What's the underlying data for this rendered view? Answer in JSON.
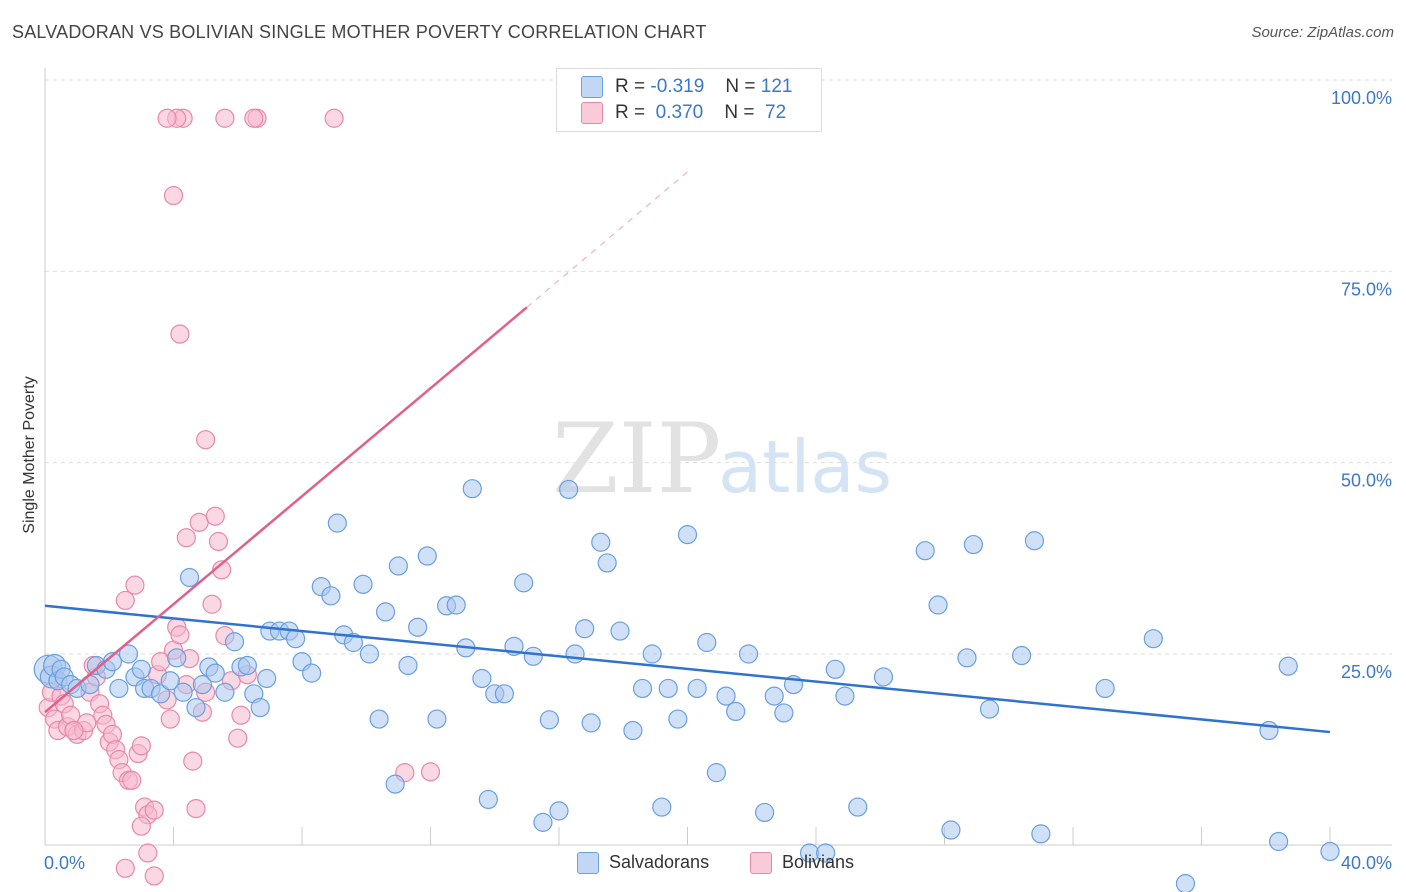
{
  "title": "SALVADORAN VS BOLIVIAN SINGLE MOTHER POVERTY CORRELATION CHART",
  "source": "Source: ZipAtlas.com",
  "watermark": {
    "zip": "ZIP",
    "atlas": "atlas"
  },
  "legend": {
    "rows": [
      {
        "r_label": "R =",
        "r_value": "-0.319",
        "n_label": "N =",
        "n_value": "121"
      },
      {
        "r_label": "R =",
        "r_value": " 0.370",
        "n_label": "N =",
        "n_value": "72"
      }
    ]
  },
  "bottom_legend": {
    "salvadorans": "Salvadorans",
    "bolivians": "Bolivians"
  },
  "colors": {
    "blue_fill": "#a9c6ee",
    "blue_stroke": "#6a9fe0",
    "blue_line": "#2f73cf",
    "pink_fill": "#f6b8cc",
    "pink_stroke": "#e888a8",
    "pink_line": "#e0608a",
    "tick": "#3b78c6",
    "grid": "#dddddd"
  },
  "chart_data": {
    "type": "scatter",
    "title": "SALVADORAN VS BOLIVIAN SINGLE MOTHER POVERTY CORRELATION CHART",
    "xlabel": "",
    "ylabel": "Single Mother Poverty",
    "xlim": [
      0,
      40
    ],
    "ylim": [
      0,
      100
    ],
    "x_tick_labels": [
      "0.0%",
      "40.0%"
    ],
    "y_ticks": [
      25,
      50,
      75,
      100
    ],
    "y_tick_labels": [
      "25.0%",
      "50.0%",
      "75.0%",
      "100.0%"
    ],
    "grid": true,
    "legend_position": "top-center",
    "series": [
      {
        "name": "Salvadorans",
        "r": -0.319,
        "n": 121,
        "trend": {
          "x": [
            0,
            40
          ],
          "y": [
            31.3,
            14.8
          ]
        },
        "points": [
          [
            0.1,
            23.0
          ],
          [
            0.2,
            22.0
          ],
          [
            0.3,
            23.5
          ],
          [
            0.4,
            21.5
          ],
          [
            0.5,
            23.0
          ],
          [
            0.6,
            22.0
          ],
          [
            0.8,
            21.0
          ],
          [
            1.0,
            20.5
          ],
          [
            1.4,
            21.0
          ],
          [
            1.6,
            23.5
          ],
          [
            1.9,
            23.0
          ],
          [
            2.1,
            24.0
          ],
          [
            2.3,
            20.5
          ],
          [
            2.6,
            25.0
          ],
          [
            2.8,
            22.0
          ],
          [
            3.0,
            23.0
          ],
          [
            3.1,
            20.5
          ],
          [
            3.3,
            20.5
          ],
          [
            3.6,
            19.8
          ],
          [
            3.9,
            21.5
          ],
          [
            4.1,
            24.5
          ],
          [
            4.3,
            20.0
          ],
          [
            4.5,
            35.0
          ],
          [
            4.7,
            18.0
          ],
          [
            4.9,
            21.0
          ],
          [
            5.1,
            23.3
          ],
          [
            5.3,
            22.5
          ],
          [
            5.6,
            20.0
          ],
          [
            5.9,
            26.6
          ],
          [
            6.1,
            23.3
          ],
          [
            6.3,
            23.5
          ],
          [
            6.5,
            19.8
          ],
          [
            6.7,
            18.0
          ],
          [
            6.9,
            21.8
          ],
          [
            7.0,
            28.0
          ],
          [
            7.3,
            28.0
          ],
          [
            7.6,
            28.0
          ],
          [
            7.8,
            27.0
          ],
          [
            8.0,
            24.0
          ],
          [
            8.3,
            22.5
          ],
          [
            8.6,
            33.8
          ],
          [
            8.9,
            32.6
          ],
          [
            9.1,
            42.1
          ],
          [
            9.3,
            27.5
          ],
          [
            9.6,
            26.5
          ],
          [
            9.9,
            34.1
          ],
          [
            10.1,
            25.0
          ],
          [
            10.4,
            16.5
          ],
          [
            10.6,
            30.5
          ],
          [
            10.9,
            8.0
          ],
          [
            11.0,
            36.5
          ],
          [
            11.3,
            23.5
          ],
          [
            11.6,
            28.5
          ],
          [
            11.9,
            37.8
          ],
          [
            12.2,
            16.5
          ],
          [
            12.5,
            31.3
          ],
          [
            12.8,
            31.4
          ],
          [
            13.1,
            25.8
          ],
          [
            13.3,
            46.6
          ],
          [
            13.6,
            21.8
          ],
          [
            13.8,
            6.0
          ],
          [
            14.0,
            19.8
          ],
          [
            14.3,
            19.8
          ],
          [
            14.6,
            26.0
          ],
          [
            14.9,
            34.3
          ],
          [
            15.2,
            24.7
          ],
          [
            15.5,
            3.0
          ],
          [
            15.7,
            16.4
          ],
          [
            16.0,
            4.5
          ],
          [
            16.3,
            46.5
          ],
          [
            16.5,
            25.0
          ],
          [
            16.8,
            28.3
          ],
          [
            17.0,
            16.0
          ],
          [
            17.3,
            39.6
          ],
          [
            17.5,
            36.9
          ],
          [
            17.9,
            28.0
          ],
          [
            18.3,
            15.0
          ],
          [
            18.6,
            20.5
          ],
          [
            18.9,
            25.0
          ],
          [
            19.2,
            5.0
          ],
          [
            19.4,
            20.5
          ],
          [
            19.7,
            16.5
          ],
          [
            20.0,
            40.6
          ],
          [
            20.3,
            20.5
          ],
          [
            20.6,
            26.5
          ],
          [
            20.9,
            9.5
          ],
          [
            21.2,
            19.5
          ],
          [
            21.5,
            17.5
          ],
          [
            21.9,
            25.0
          ],
          [
            22.4,
            4.3
          ],
          [
            22.7,
            19.5
          ],
          [
            23.0,
            17.3
          ],
          [
            23.3,
            21.0
          ],
          [
            23.8,
            -1.0
          ],
          [
            24.3,
            -1.0
          ],
          [
            24.6,
            23.0
          ],
          [
            24.9,
            19.5
          ],
          [
            25.3,
            5.0
          ],
          [
            26.1,
            22.0
          ],
          [
            27.4,
            38.5
          ],
          [
            27.8,
            31.4
          ],
          [
            28.2,
            2.0
          ],
          [
            28.7,
            24.5
          ],
          [
            28.9,
            39.3
          ],
          [
            29.4,
            17.8
          ],
          [
            30.4,
            24.8
          ],
          [
            30.8,
            39.8
          ],
          [
            31.0,
            1.5
          ],
          [
            33.0,
            20.5
          ],
          [
            34.5,
            27.0
          ],
          [
            35.5,
            -5.0
          ],
          [
            38.1,
            15.0
          ],
          [
            38.4,
            0.5
          ],
          [
            38.7,
            23.4
          ],
          [
            40.0,
            -0.8
          ]
        ]
      },
      {
        "name": "Bolivians",
        "r": 0.37,
        "n": 72,
        "trend": {
          "x": [
            0,
            15
          ],
          "y": [
            17.4,
            70.3
          ],
          "dashed_to": {
            "x": 20,
            "y": 88.0
          }
        },
        "points": [
          [
            0.1,
            18.0
          ],
          [
            0.2,
            20.0
          ],
          [
            0.3,
            16.5
          ],
          [
            0.4,
            15.0
          ],
          [
            0.5,
            19.5
          ],
          [
            0.6,
            18.5
          ],
          [
            0.7,
            15.5
          ],
          [
            0.8,
            17.0
          ],
          [
            1.0,
            14.5
          ],
          [
            1.2,
            15.0
          ],
          [
            1.3,
            16.0
          ],
          [
            1.4,
            20.0
          ],
          [
            1.6,
            22.0
          ],
          [
            1.7,
            18.5
          ],
          [
            1.8,
            17.0
          ],
          [
            1.9,
            15.8
          ],
          [
            2.0,
            13.5
          ],
          [
            2.1,
            14.5
          ],
          [
            2.2,
            12.5
          ],
          [
            2.3,
            11.2
          ],
          [
            2.4,
            9.5
          ],
          [
            2.6,
            8.5
          ],
          [
            2.7,
            8.5
          ],
          [
            2.9,
            12.0
          ],
          [
            3.0,
            13.0
          ],
          [
            3.1,
            5.0
          ],
          [
            3.2,
            4.0
          ],
          [
            3.4,
            4.6
          ],
          [
            3.5,
            22.3
          ],
          [
            3.6,
            24.0
          ],
          [
            3.8,
            19.0
          ],
          [
            3.9,
            16.5
          ],
          [
            4.0,
            25.5
          ],
          [
            4.1,
            28.5
          ],
          [
            4.2,
            27.5
          ],
          [
            4.4,
            21.0
          ],
          [
            4.5,
            24.4
          ],
          [
            4.6,
            11.0
          ],
          [
            4.7,
            4.8
          ],
          [
            4.9,
            17.4
          ],
          [
            5.0,
            20.0
          ],
          [
            5.2,
            31.5
          ],
          [
            5.4,
            39.7
          ],
          [
            5.6,
            27.4
          ],
          [
            5.8,
            21.5
          ],
          [
            6.0,
            14.0
          ],
          [
            6.1,
            17.0
          ],
          [
            6.3,
            22.3
          ],
          [
            3.0,
            2.5
          ],
          [
            3.2,
            -1.0
          ],
          [
            3.4,
            -4.0
          ],
          [
            2.5,
            -3.0
          ],
          [
            4.0,
            84.9
          ],
          [
            4.3,
            95.0
          ],
          [
            4.1,
            95.0
          ],
          [
            5.6,
            95.0
          ],
          [
            6.6,
            95.0
          ],
          [
            6.5,
            95.0
          ],
          [
            9.0,
            95.0
          ],
          [
            3.8,
            95.0
          ],
          [
            4.2,
            66.8
          ],
          [
            5.0,
            53.0
          ],
          [
            4.8,
            42.2
          ],
          [
            4.4,
            40.2
          ],
          [
            5.5,
            36.0
          ],
          [
            5.3,
            43.0
          ],
          [
            2.8,
            34.0
          ],
          [
            2.5,
            32.0
          ],
          [
            0.9,
            15.0
          ],
          [
            1.5,
            23.5
          ],
          [
            11.2,
            9.5
          ],
          [
            12.0,
            9.6
          ]
        ]
      }
    ]
  }
}
